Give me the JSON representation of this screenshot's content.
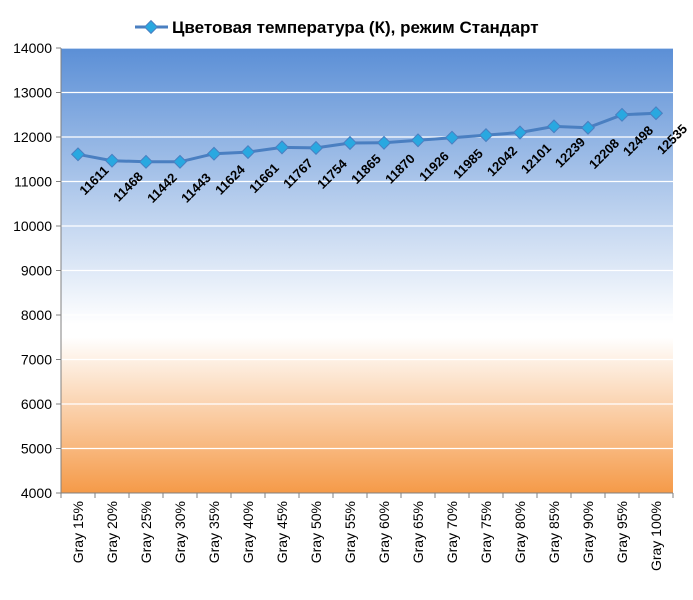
{
  "chart_data": {
    "type": "line",
    "title": "",
    "xlabel": "",
    "ylabel": "",
    "ylim": [
      4000,
      14000
    ],
    "yticks": [
      4000,
      5000,
      6000,
      7000,
      8000,
      9000,
      10000,
      11000,
      12000,
      13000,
      14000
    ],
    "grid": true,
    "legend_position": "top",
    "categories": [
      "Gray 15%",
      "Gray 20%",
      "Gray 25%",
      "Gray 30%",
      "Gray 35%",
      "Gray 40%",
      "Gray 45%",
      "Gray 50%",
      "Gray 55%",
      "Gray 60%",
      "Gray 65%",
      "Gray 70%",
      "Gray 75%",
      "Gray 80%",
      "Gray 85%",
      "Gray 90%",
      "Gray 95%",
      "Gray 100%"
    ],
    "series": [
      {
        "name": "Цветовая температура (К), режим Стандарт",
        "color": "#4a7fc1",
        "marker_color": "#29a8e0",
        "values": [
          11611,
          11468,
          11442,
          11443,
          11624,
          11661,
          11767,
          11754,
          11865,
          11870,
          11926,
          11985,
          12042,
          12101,
          12239,
          12208,
          12498,
          12535
        ]
      }
    ],
    "colors": {
      "plot_top": "#5b8fd6",
      "plot_white": "#ffffff",
      "plot_bottom": "#f59a48"
    }
  }
}
